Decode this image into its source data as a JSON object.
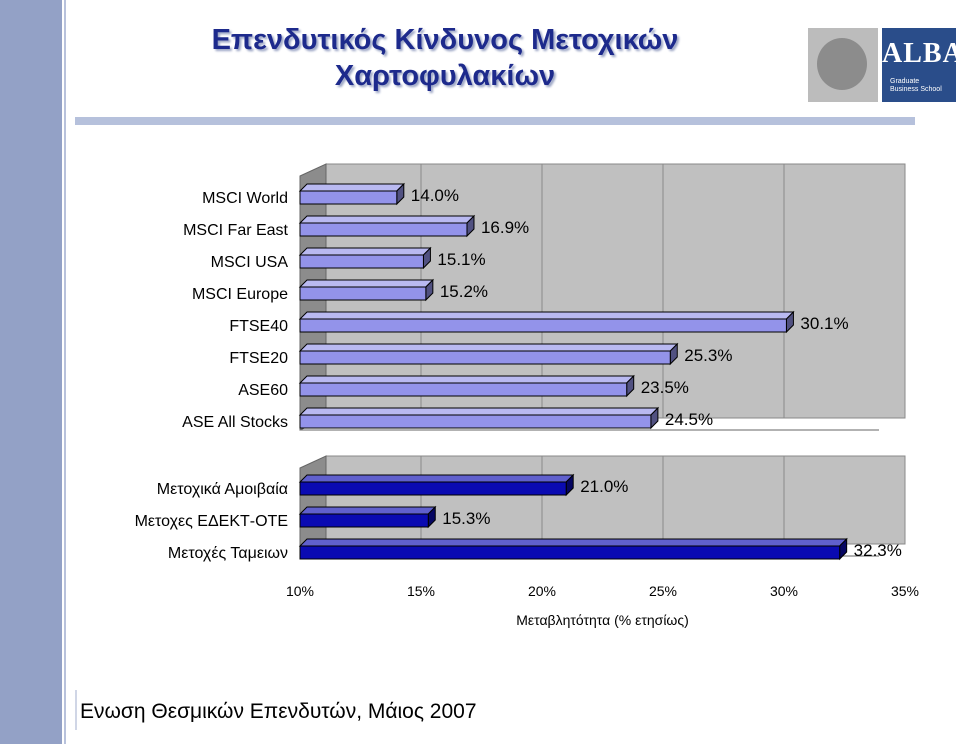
{
  "slide": {
    "title_line1": "Επενδυτικός Κίνδυνος Μετοχικών",
    "title_line2": "Χαρτοφυλακίων",
    "logo_text": "ALBA",
    "logo_sub1": "Graduate",
    "logo_sub2": "Business School",
    "footer": "Ενωση Θεσμικών Επενδυτών, Μάιος 2007"
  },
  "chart_data": {
    "type": "bar",
    "orientation": "horizontal",
    "xlabel": "Μεταβλητότητα (% ετησίως)",
    "xlim": [
      10,
      35
    ],
    "xticks": [
      "10%",
      "15%",
      "20%",
      "25%",
      "30%",
      "35%"
    ],
    "tick_values": [
      10,
      15,
      20,
      25,
      30,
      35
    ],
    "grid": true,
    "groups": [
      {
        "color": "#9393ea",
        "categories": [
          "MSCI World",
          "MSCI Far East",
          "MSCI USA",
          "MSCI Europe",
          "FTSE40",
          "FTSE20",
          "ASE60",
          "ASE All Stocks"
        ],
        "values": [
          14.0,
          16.9,
          15.1,
          15.2,
          30.1,
          25.3,
          23.5,
          24.5
        ],
        "labels": [
          "14.0%",
          "16.9%",
          "15.1%",
          "15.2%",
          "30.1%",
          "25.3%",
          "23.5%",
          "24.5%"
        ]
      },
      {
        "color": "#0a0ab2",
        "categories": [
          "Μετοχικά Αμοιβαία",
          "Μετοχες ΕΔΕΚΤ-ΟΤΕ",
          "Μετοχές Ταμειων"
        ],
        "values": [
          21.0,
          15.3,
          32.3
        ],
        "labels": [
          "21.0%",
          "15.3%",
          "32.3%"
        ]
      }
    ]
  }
}
